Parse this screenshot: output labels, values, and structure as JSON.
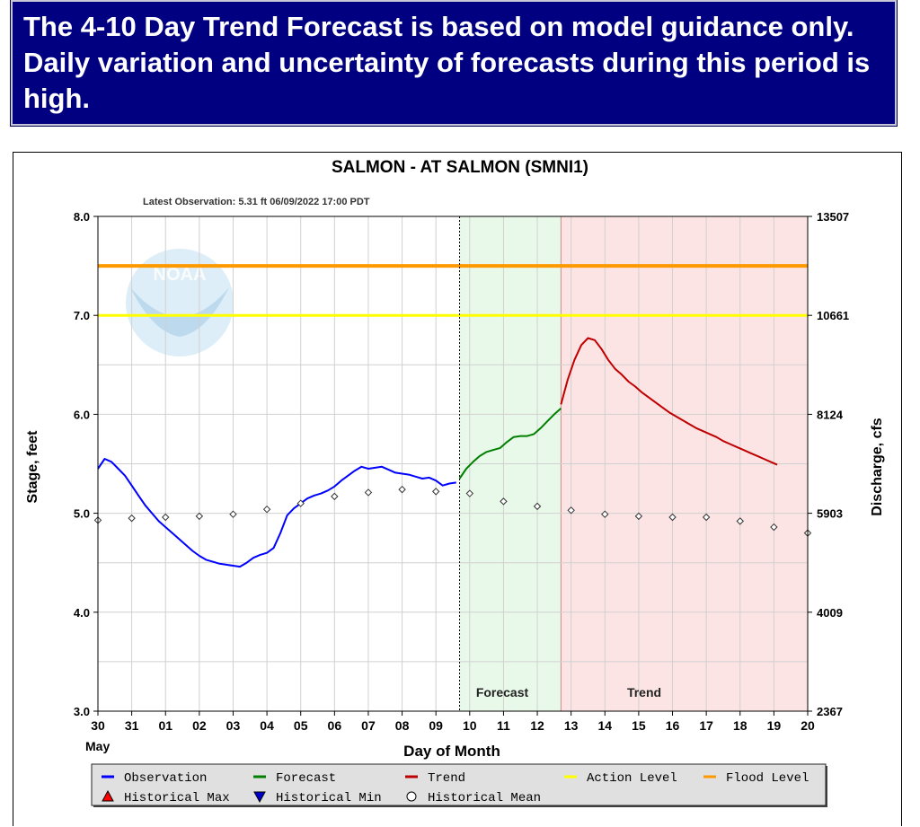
{
  "banner": {
    "text": "The 4-10 Day Trend Forecast is based on model guidance only. Daily variation and uncertainty of forecasts during this period is high."
  },
  "logo": {
    "text": "NOAA"
  },
  "chart_data": {
    "type": "line",
    "title": "SALMON - AT SALMON  (SMNI1)",
    "subtitle": "Latest Observation: 5.31 ft 06/09/2022 17:00 PDT",
    "xlabel": "Day of Month",
    "x_month_label": "May",
    "ylabel": "Stage, feet",
    "y2label": "Discharge, cfs",
    "x_ticks": [
      "30",
      "31",
      "01",
      "02",
      "03",
      "04",
      "05",
      "06",
      "07",
      "08",
      "09",
      "10",
      "11",
      "12",
      "13",
      "14",
      "15",
      "16",
      "17",
      "18",
      "19",
      "20"
    ],
    "xlim": [
      0,
      21
    ],
    "ylim": [
      3.0,
      8.0
    ],
    "y_ticks": [
      "3.0",
      "4.0",
      "5.0",
      "6.0",
      "7.0",
      "8.0"
    ],
    "y_tick_values": [
      3.0,
      4.0,
      5.0,
      6.0,
      7.0,
      8.0
    ],
    "y2_ticks": [
      "2367",
      "4009",
      "5903",
      "8124",
      "10661",
      "13507"
    ],
    "action_level": 7.0,
    "flood_level": 7.5,
    "forecast_region": {
      "start": 10.7,
      "end": 13.7,
      "label": "Forecast"
    },
    "trend_region": {
      "start": 13.7,
      "end": 21,
      "label": "Trend"
    },
    "series": [
      {
        "name": "Observation",
        "color": "#0000ff",
        "points": [
          [
            0.0,
            5.45
          ],
          [
            0.2,
            5.55
          ],
          [
            0.4,
            5.52
          ],
          [
            0.6,
            5.45
          ],
          [
            0.8,
            5.38
          ],
          [
            1.0,
            5.28
          ],
          [
            1.2,
            5.18
          ],
          [
            1.4,
            5.08
          ],
          [
            1.6,
            5.0
          ],
          [
            1.8,
            4.92
          ],
          [
            2.0,
            4.86
          ],
          [
            2.2,
            4.8
          ],
          [
            2.4,
            4.74
          ],
          [
            2.6,
            4.68
          ],
          [
            2.8,
            4.62
          ],
          [
            3.0,
            4.57
          ],
          [
            3.2,
            4.53
          ],
          [
            3.4,
            4.51
          ],
          [
            3.6,
            4.49
          ],
          [
            3.8,
            4.48
          ],
          [
            4.0,
            4.47
          ],
          [
            4.2,
            4.46
          ],
          [
            4.4,
            4.5
          ],
          [
            4.6,
            4.55
          ],
          [
            4.8,
            4.58
          ],
          [
            5.0,
            4.6
          ],
          [
            5.2,
            4.65
          ],
          [
            5.4,
            4.8
          ],
          [
            5.6,
            4.98
          ],
          [
            5.8,
            5.05
          ],
          [
            6.0,
            5.1
          ],
          [
            6.2,
            5.15
          ],
          [
            6.4,
            5.18
          ],
          [
            6.6,
            5.2
          ],
          [
            6.8,
            5.23
          ],
          [
            7.0,
            5.27
          ],
          [
            7.2,
            5.33
          ],
          [
            7.4,
            5.38
          ],
          [
            7.6,
            5.43
          ],
          [
            7.8,
            5.47
          ],
          [
            8.0,
            5.45
          ],
          [
            8.2,
            5.46
          ],
          [
            8.4,
            5.47
          ],
          [
            8.6,
            5.44
          ],
          [
            8.8,
            5.41
          ],
          [
            9.0,
            5.4
          ],
          [
            9.2,
            5.39
          ],
          [
            9.4,
            5.37
          ],
          [
            9.6,
            5.35
          ],
          [
            9.8,
            5.36
          ],
          [
            10.0,
            5.33
          ],
          [
            10.2,
            5.28
          ],
          [
            10.4,
            5.3
          ],
          [
            10.6,
            5.31
          ]
        ]
      },
      {
        "name": "Forecast",
        "color": "#008000",
        "points": [
          [
            10.7,
            5.35
          ],
          [
            10.9,
            5.45
          ],
          [
            11.1,
            5.52
          ],
          [
            11.3,
            5.58
          ],
          [
            11.5,
            5.62
          ],
          [
            11.7,
            5.64
          ],
          [
            11.9,
            5.66
          ],
          [
            12.1,
            5.72
          ],
          [
            12.3,
            5.77
          ],
          [
            12.5,
            5.78
          ],
          [
            12.7,
            5.78
          ],
          [
            12.9,
            5.8
          ],
          [
            13.1,
            5.86
          ],
          [
            13.3,
            5.93
          ],
          [
            13.5,
            6.0
          ],
          [
            13.7,
            6.06
          ]
        ]
      },
      {
        "name": "Trend",
        "color": "#c00000",
        "points": [
          [
            13.7,
            6.1
          ],
          [
            13.9,
            6.35
          ],
          [
            14.1,
            6.55
          ],
          [
            14.3,
            6.7
          ],
          [
            14.5,
            6.77
          ],
          [
            14.7,
            6.75
          ],
          [
            14.9,
            6.66
          ],
          [
            15.1,
            6.55
          ],
          [
            15.3,
            6.46
          ],
          [
            15.5,
            6.4
          ],
          [
            15.7,
            6.33
          ],
          [
            15.9,
            6.28
          ],
          [
            16.1,
            6.22
          ],
          [
            16.3,
            6.17
          ],
          [
            16.5,
            6.12
          ],
          [
            16.7,
            6.07
          ],
          [
            16.9,
            6.02
          ],
          [
            17.1,
            5.98
          ],
          [
            17.3,
            5.94
          ],
          [
            17.5,
            5.9
          ],
          [
            17.7,
            5.86
          ],
          [
            17.9,
            5.83
          ],
          [
            18.1,
            5.8
          ],
          [
            18.3,
            5.77
          ],
          [
            18.5,
            5.73
          ],
          [
            18.7,
            5.7
          ],
          [
            18.9,
            5.67
          ],
          [
            19.1,
            5.64
          ],
          [
            19.3,
            5.61
          ],
          [
            19.5,
            5.58
          ],
          [
            19.7,
            5.55
          ],
          [
            19.9,
            5.52
          ],
          [
            20.1,
            5.49
          ]
        ]
      },
      {
        "name": "Historical Mean",
        "color": "#333333",
        "points": [
          [
            0,
            4.93
          ],
          [
            1,
            4.95
          ],
          [
            2,
            4.96
          ],
          [
            3,
            4.97
          ],
          [
            4,
            4.99
          ],
          [
            5,
            5.04
          ],
          [
            6,
            5.1
          ],
          [
            7,
            5.17
          ],
          [
            8,
            5.21
          ],
          [
            9,
            5.24
          ],
          [
            10,
            5.22
          ],
          [
            11,
            5.2
          ],
          [
            12,
            5.12
          ],
          [
            13,
            5.07
          ],
          [
            14,
            5.03
          ],
          [
            15,
            4.99
          ],
          [
            16,
            4.97
          ],
          [
            17,
            4.96
          ],
          [
            18,
            4.96
          ],
          [
            19,
            4.92
          ],
          [
            20,
            4.86
          ],
          [
            21,
            4.8
          ]
        ]
      }
    ],
    "legend": [
      {
        "label": "Observation",
        "symbol": "line",
        "color": "#0000ff"
      },
      {
        "label": "Forecast",
        "symbol": "line",
        "color": "#008000"
      },
      {
        "label": "Trend",
        "symbol": "line",
        "color": "#c00000"
      },
      {
        "label": "Action Level",
        "symbol": "line",
        "color": "#ffff00"
      },
      {
        "label": "Flood Level",
        "symbol": "line",
        "color": "#ff9900"
      },
      {
        "label": "Historical Max",
        "symbol": "triangle-up",
        "color": "#ff0000"
      },
      {
        "label": "Historical Min",
        "symbol": "triangle-down",
        "color": "#0000cc"
      },
      {
        "label": "Historical Mean",
        "symbol": "circle",
        "color": "#000000"
      }
    ],
    "colors": {
      "action": "#ffff00",
      "flood": "#ff9900",
      "forecast_bg": "#e9f9e9",
      "trend_bg": "#fde4e4",
      "grid": "#d0d0d0"
    }
  }
}
